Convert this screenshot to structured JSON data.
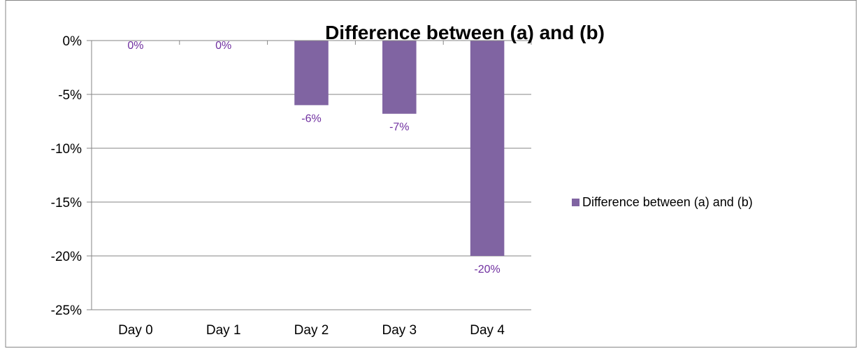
{
  "chart_data": {
    "type": "bar",
    "title": "Difference between (a) and (b)",
    "xlabel": "",
    "ylabel": "",
    "categories": [
      "Day 0",
      "Day 1",
      "Day 2",
      "Day 3",
      "Day 4"
    ],
    "series": [
      {
        "name": "Difference between (a) and (b)",
        "values": [
          0,
          0,
          -6,
          -6.8,
          -20
        ],
        "labels": [
          "0%",
          "0%",
          "-6%",
          "-7%",
          "-20%"
        ],
        "color": "#8064a2"
      }
    ],
    "ylim": [
      -25,
      0
    ],
    "yticks": [
      0,
      -5,
      -10,
      -15,
      -20,
      -25
    ],
    "ytick_labels": [
      "0%",
      "-5%",
      "-10%",
      "-15%",
      "-20%",
      "-25%"
    ],
    "grid": true,
    "legend_position": "right",
    "colors": {
      "bar": "#8064a2",
      "data_label": "#7030a0",
      "axis": "#868686",
      "text": "#000000",
      "border": "#868686"
    }
  }
}
